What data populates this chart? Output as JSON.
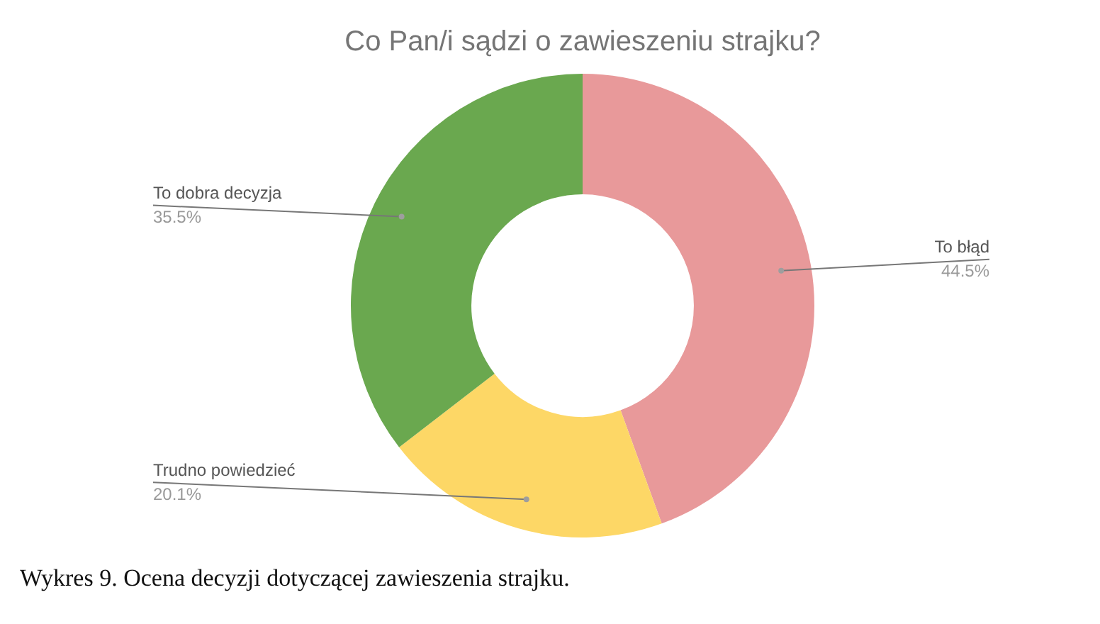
{
  "chart_data": {
    "type": "donut",
    "title": "Co Pan/i sądzi o zawieszeniu strajku?",
    "categories": [
      "To błąd",
      "Trudno powiedzieć",
      "To dobra decyzja"
    ],
    "values": [
      44.5,
      20.1,
      35.5
    ],
    "colors": [
      "#e8999a",
      "#fdd766",
      "#6aa84f"
    ],
    "value_labels": [
      "44.5%",
      "20.1%",
      "35.5%"
    ],
    "legend": false,
    "annotations": [
      "Wykres 9. Ocena decyzji dotyczącej zawieszenia strajku."
    ]
  }
}
